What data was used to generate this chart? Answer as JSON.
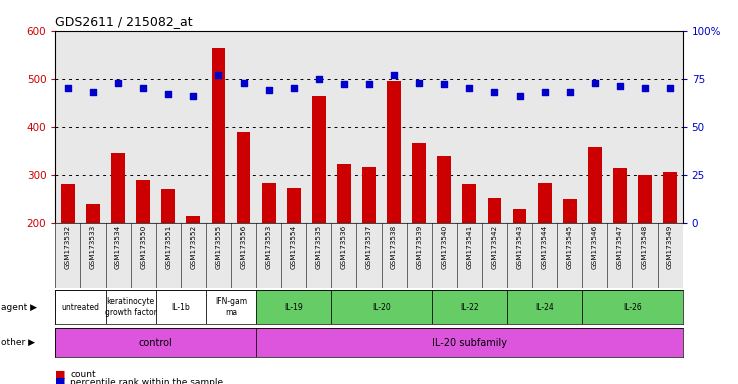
{
  "title": "GDS2611 / 215082_at",
  "gsm_labels": [
    "GSM173532",
    "GSM173533",
    "GSM173534",
    "GSM173550",
    "GSM173551",
    "GSM173552",
    "GSM173555",
    "GSM173556",
    "GSM173553",
    "GSM173554",
    "GSM173535",
    "GSM173536",
    "GSM173537",
    "GSM173538",
    "GSM173539",
    "GSM173540",
    "GSM173541",
    "GSM173542",
    "GSM173543",
    "GSM173544",
    "GSM173545",
    "GSM173546",
    "GSM173547",
    "GSM173548",
    "GSM173549"
  ],
  "counts": [
    280,
    240,
    345,
    290,
    270,
    213,
    565,
    388,
    283,
    273,
    465,
    323,
    316,
    495,
    367,
    340,
    280,
    252,
    228,
    283,
    250,
    358,
    314,
    300,
    305
  ],
  "percentiles": [
    70,
    68,
    73,
    70,
    67,
    66,
    77,
    73,
    69,
    70,
    75,
    72,
    72,
    77,
    73,
    72,
    70,
    68,
    66,
    68,
    68,
    73,
    71,
    70,
    70
  ],
  "bar_color": "#cc0000",
  "dot_color": "#0000cc",
  "ylim_left": [
    200,
    600
  ],
  "ylim_right": [
    0,
    100
  ],
  "yticks_left": [
    200,
    300,
    400,
    500,
    600
  ],
  "yticks_right": [
    0,
    25,
    50,
    75,
    100
  ],
  "agent_groups": [
    {
      "label": "untreated",
      "start": 0,
      "end": 2,
      "color": "#ffffff"
    },
    {
      "label": "keratinocyte\ngrowth factor",
      "start": 2,
      "end": 4,
      "color": "#ffffff"
    },
    {
      "label": "IL-1b",
      "start": 4,
      "end": 6,
      "color": "#ffffff"
    },
    {
      "label": "IFN-gam\nma",
      "start": 6,
      "end": 8,
      "color": "#ffffff"
    },
    {
      "label": "IL-19",
      "start": 8,
      "end": 11,
      "color": "#66cc66"
    },
    {
      "label": "IL-20",
      "start": 11,
      "end": 15,
      "color": "#66cc66"
    },
    {
      "label": "IL-22",
      "start": 15,
      "end": 18,
      "color": "#66cc66"
    },
    {
      "label": "IL-24",
      "start": 18,
      "end": 21,
      "color": "#66cc66"
    },
    {
      "label": "IL-26",
      "start": 21,
      "end": 25,
      "color": "#66cc66"
    }
  ],
  "other_groups": [
    {
      "label": "control",
      "start": 0,
      "end": 8,
      "color": "#dd55dd"
    },
    {
      "label": "IL-20 subfamily",
      "start": 8,
      "end": 25,
      "color": "#dd55dd"
    }
  ],
  "grid_dotted_at": [
    300,
    400,
    500
  ],
  "bg_color": "#e8e8e8",
  "tick_color_left": "#cc0000",
  "tick_color_right": "#0000cc"
}
